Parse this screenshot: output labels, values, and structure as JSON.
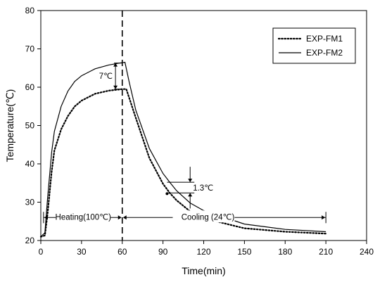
{
  "chart_data": {
    "type": "line",
    "xlabel": "Time(min)",
    "ylabel": "Temperature(℃)",
    "xlim": [
      0,
      240
    ],
    "ylim": [
      20,
      80
    ],
    "x_ticks": [
      0,
      30,
      60,
      90,
      120,
      150,
      180,
      210,
      240
    ],
    "y_ticks": [
      20,
      30,
      40,
      50,
      60,
      70,
      80
    ],
    "grid": false,
    "legend_position": "top-right",
    "series": [
      {
        "name": "EXP-FM1",
        "line_style": "dotted",
        "x": [
          0,
          3,
          5,
          8,
          10,
          15,
          20,
          25,
          30,
          40,
          50,
          60,
          63,
          70,
          80,
          90,
          95,
          100,
          110,
          120,
          150,
          180,
          210
        ],
        "y": [
          21,
          21.3,
          27,
          38,
          43.5,
          49,
          52.5,
          55,
          56.5,
          58.3,
          59.1,
          59.5,
          59.5,
          52,
          41.5,
          34.8,
          32.4,
          30.5,
          27.6,
          25.8,
          23.2,
          22.3,
          21.8
        ]
      },
      {
        "name": "EXP-FM2",
        "line_style": "solid",
        "x": [
          0,
          3,
          5,
          8,
          10,
          15,
          20,
          25,
          30,
          40,
          50,
          58,
          62,
          65,
          70,
          80,
          90,
          95,
          100,
          110,
          120,
          150,
          180,
          210
        ],
        "y": [
          21,
          22,
          31,
          43,
          48.5,
          55,
          59,
          61.5,
          63,
          64.8,
          65.8,
          66.3,
          66.5,
          61.5,
          54,
          44,
          37.5,
          35.2,
          33,
          29.8,
          27.8,
          24.3,
          22.9,
          22.3
        ]
      }
    ],
    "annotations": {
      "gap_peak_label": "7℃",
      "gap_cooling_label": "1.3℃",
      "heating_label": "Heating(100℃)",
      "cooling_label": "Cooling (24℃)"
    }
  }
}
